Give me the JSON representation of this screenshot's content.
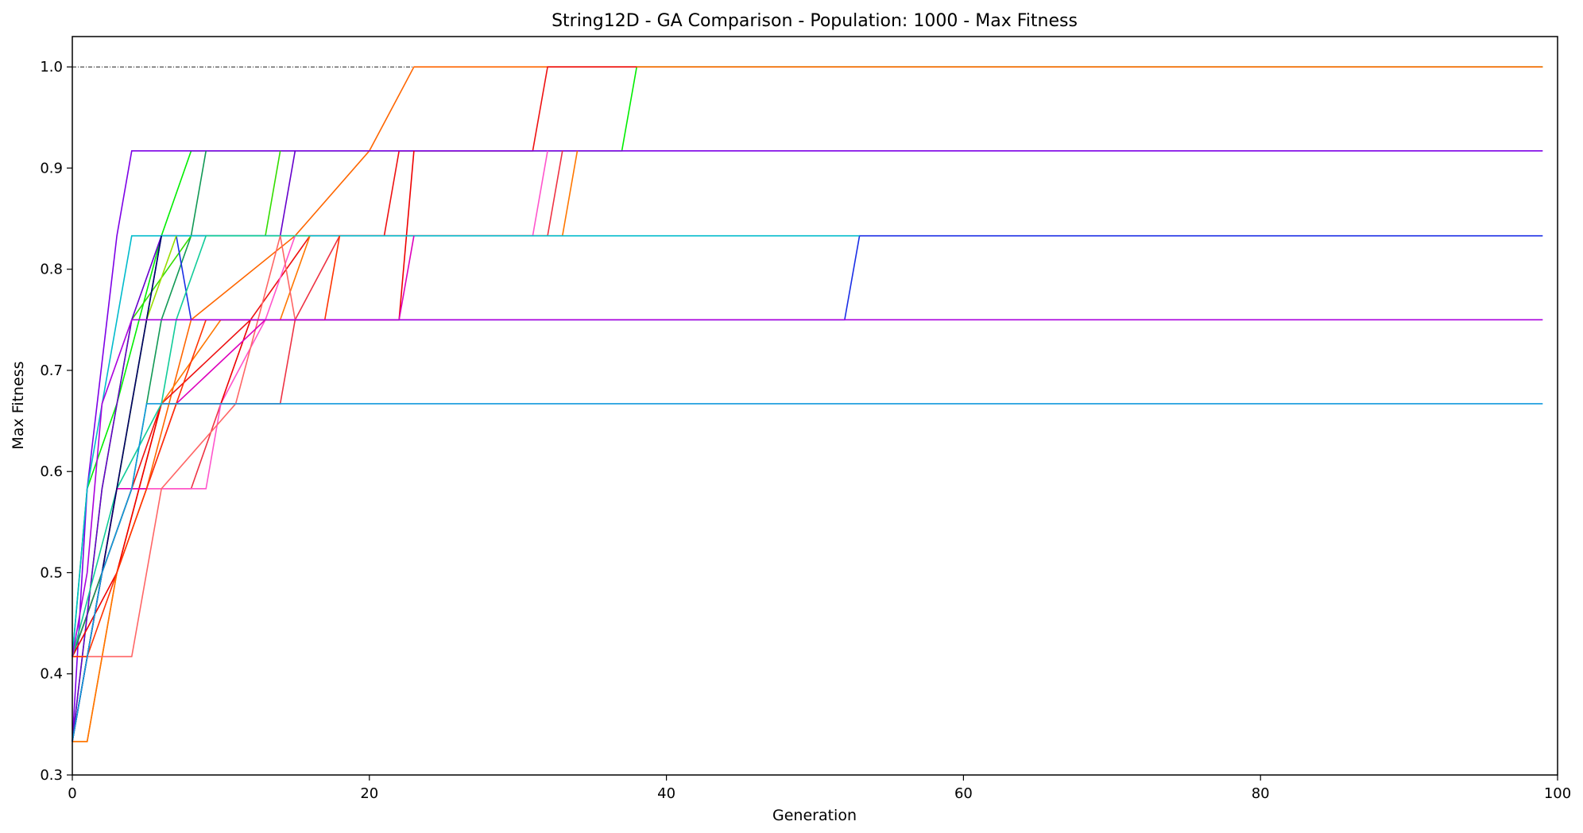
{
  "chart_data": {
    "type": "line",
    "title": "String12D - GA Comparison - Population: 1000 - Max Fitness",
    "xlabel": "Generation",
    "ylabel": "Max Fitness",
    "xlim": [
      0,
      100
    ],
    "ylim": [
      0.3,
      1.03
    ],
    "xticks": [
      "0",
      "20",
      "40",
      "60",
      "80",
      "100"
    ],
    "yticks": [
      "0.3",
      "0.4",
      "0.5",
      "0.6",
      "0.7",
      "0.8",
      "0.9",
      "1.0"
    ],
    "grid": false,
    "legend": "none",
    "reference_line": {
      "y": 1.0,
      "x_end": 23,
      "style": "dash-dot",
      "color": "#000000"
    },
    "series": [
      {
        "color": "#00ee00",
        "points": [
          [
            0,
            0.417
          ],
          [
            1,
            0.583
          ],
          [
            3,
            0.667
          ],
          [
            6,
            0.833
          ],
          [
            8,
            0.917
          ],
          [
            37,
            0.917
          ],
          [
            38,
            1.0
          ],
          [
            99,
            1.0
          ]
        ]
      },
      {
        "color": "#ff6600",
        "points": [
          [
            0,
            0.333
          ],
          [
            1,
            0.333
          ],
          [
            3,
            0.5
          ],
          [
            5,
            0.583
          ],
          [
            8,
            0.75
          ],
          [
            15,
            0.833
          ],
          [
            20,
            0.917
          ],
          [
            23,
            1.0
          ],
          [
            99,
            1.0
          ]
        ]
      },
      {
        "color": "#ee1111",
        "points": [
          [
            0,
            0.417
          ],
          [
            2,
            0.5
          ],
          [
            4,
            0.583
          ],
          [
            6,
            0.667
          ],
          [
            12,
            0.75
          ],
          [
            16,
            0.833
          ],
          [
            21,
            0.833
          ],
          [
            22,
            0.917
          ],
          [
            31,
            0.917
          ],
          [
            32,
            1.0
          ],
          [
            38,
            1.0
          ]
        ]
      },
      {
        "color": "#7d00e6",
        "points": [
          [
            0,
            0.333
          ],
          [
            1,
            0.583
          ],
          [
            3,
            0.833
          ],
          [
            4,
            0.917
          ],
          [
            99,
            0.917
          ]
        ]
      },
      {
        "color": "#ee3344",
        "points": [
          [
            0,
            0.417
          ],
          [
            2,
            0.5
          ],
          [
            4,
            0.583
          ],
          [
            8,
            0.583
          ],
          [
            10,
            0.667
          ],
          [
            14,
            0.667
          ],
          [
            15,
            0.75
          ],
          [
            18,
            0.833
          ],
          [
            32,
            0.833
          ],
          [
            33,
            0.917
          ]
        ]
      },
      {
        "color": "#ff7700",
        "points": [
          [
            0,
            0.333
          ],
          [
            1,
            0.333
          ],
          [
            3,
            0.5
          ],
          [
            6,
            0.667
          ],
          [
            10,
            0.75
          ],
          [
            14,
            0.75
          ],
          [
            16,
            0.833
          ],
          [
            33,
            0.833
          ],
          [
            34,
            0.917
          ]
        ]
      },
      {
        "color": "#ff55cc",
        "points": [
          [
            0,
            0.417
          ],
          [
            2,
            0.5
          ],
          [
            4,
            0.583
          ],
          [
            9,
            0.583
          ],
          [
            10,
            0.667
          ],
          [
            13,
            0.75
          ],
          [
            15,
            0.833
          ],
          [
            31,
            0.833
          ],
          [
            32,
            0.917
          ]
        ]
      },
      {
        "color": "#119955",
        "points": [
          [
            0,
            0.417
          ],
          [
            2,
            0.5
          ],
          [
            4,
            0.583
          ],
          [
            6,
            0.75
          ],
          [
            8,
            0.833
          ],
          [
            9,
            0.917
          ]
        ]
      },
      {
        "color": "#33dd00",
        "points": [
          [
            0,
            0.333
          ],
          [
            2,
            0.583
          ],
          [
            4,
            0.75
          ],
          [
            8,
            0.833
          ],
          [
            13,
            0.833
          ],
          [
            14,
            0.917
          ]
        ]
      },
      {
        "color": "#6600cc",
        "points": [
          [
            0,
            0.333
          ],
          [
            2,
            0.583
          ],
          [
            4,
            0.75
          ],
          [
            6,
            0.833
          ],
          [
            14,
            0.833
          ],
          [
            15,
            0.917
          ]
        ]
      },
      {
        "color": "#ee0000",
        "points": [
          [
            0,
            0.417
          ],
          [
            3,
            0.5
          ],
          [
            6,
            0.667
          ],
          [
            10,
            0.667
          ],
          [
            12,
            0.75
          ],
          [
            22,
            0.75
          ],
          [
            23,
            0.917
          ]
        ]
      },
      {
        "color": "#1a2ee6",
        "points": [
          [
            0,
            0.333
          ],
          [
            3,
            0.583
          ],
          [
            6,
            0.833
          ],
          [
            7,
            0.833
          ],
          [
            8,
            0.75
          ],
          [
            52,
            0.75
          ],
          [
            53,
            0.833
          ],
          [
            99,
            0.833
          ]
        ]
      },
      {
        "color": "#00bbcc",
        "points": [
          [
            0,
            0.417
          ],
          [
            1,
            0.583
          ],
          [
            4,
            0.833
          ],
          [
            53,
            0.833
          ]
        ]
      },
      {
        "color": "#99dd00",
        "points": [
          [
            0,
            0.333
          ],
          [
            3,
            0.583
          ],
          [
            5,
            0.75
          ],
          [
            7,
            0.833
          ]
        ]
      },
      {
        "color": "#11cc99",
        "points": [
          [
            0,
            0.417
          ],
          [
            3,
            0.583
          ],
          [
            6,
            0.667
          ],
          [
            7,
            0.75
          ],
          [
            9,
            0.833
          ],
          [
            16,
            0.833
          ]
        ]
      },
      {
        "color": "#ff6666",
        "points": [
          [
            0,
            0.417
          ],
          [
            4,
            0.417
          ],
          [
            6,
            0.583
          ],
          [
            11,
            0.667
          ],
          [
            14,
            0.833
          ],
          [
            15,
            0.75
          ]
        ]
      },
      {
        "color": "#dd00bb",
        "points": [
          [
            0,
            0.333
          ],
          [
            3,
            0.583
          ],
          [
            5,
            0.583
          ],
          [
            7,
            0.667
          ],
          [
            13,
            0.75
          ],
          [
            22,
            0.75
          ],
          [
            23,
            0.833
          ]
        ]
      },
      {
        "color": "#ff3300",
        "points": [
          [
            0,
            0.417
          ],
          [
            1,
            0.417
          ],
          [
            3,
            0.5
          ],
          [
            5,
            0.583
          ],
          [
            7,
            0.667
          ],
          [
            9,
            0.75
          ],
          [
            17,
            0.75
          ],
          [
            18,
            0.833
          ]
        ]
      },
      {
        "color": "#000066",
        "points": [
          [
            0,
            0.333
          ],
          [
            4,
            0.667
          ],
          [
            6,
            0.833
          ]
        ]
      },
      {
        "color": "#1199dd",
        "points": [
          [
            0,
            0.333
          ],
          [
            2,
            0.5
          ],
          [
            4,
            0.583
          ],
          [
            5,
            0.667
          ],
          [
            99,
            0.667
          ]
        ]
      },
      {
        "color": "#aa00dd",
        "points": [
          [
            0,
            0.417
          ],
          [
            1,
            0.5
          ],
          [
            2,
            0.667
          ],
          [
            4,
            0.75
          ],
          [
            99,
            0.75
          ]
        ]
      }
    ]
  }
}
